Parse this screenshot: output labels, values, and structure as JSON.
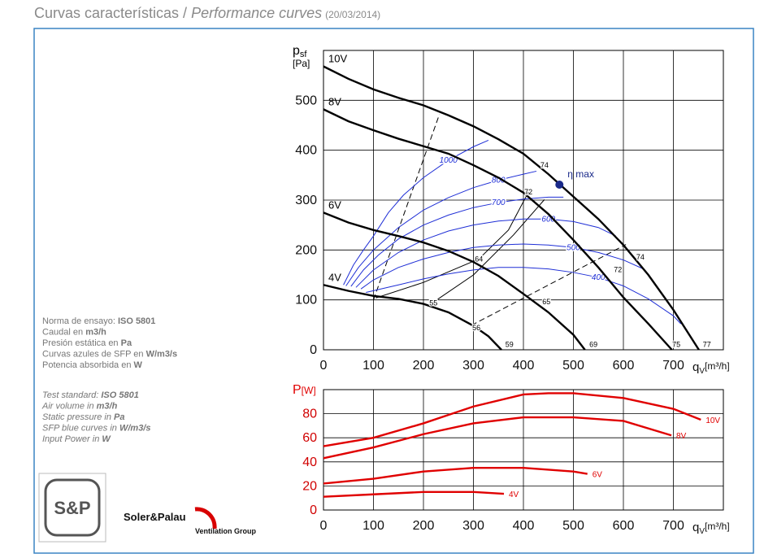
{
  "header": {
    "title_es": "Curvas características / ",
    "title_en": "Performance curves",
    "date": "(20/03/2014)"
  },
  "notes": {
    "es": [
      {
        "text": "Norma de ensayo: ",
        "bold": "ISO 5801"
      },
      {
        "text": "Caudal en ",
        "bold": "m3/h"
      },
      {
        "text": "Presión estática en ",
        "bold": "Pa"
      },
      {
        "text": "Curvas azules de SFP en ",
        "bold": "W/m3/s"
      },
      {
        "text": "Potencia absorbida en ",
        "bold": "W"
      }
    ],
    "en": [
      {
        "text": "Test standard: ",
        "bold": "ISO 5801"
      },
      {
        "text": "Air volume in ",
        "bold": "m3/h"
      },
      {
        "text": "Static pressure in ",
        "bold": "Pa"
      },
      {
        "text": "SFP blue curves in ",
        "bold": "W/m3/s"
      },
      {
        "text": "Input Power in ",
        "bold": "W"
      }
    ]
  },
  "logo": {
    "mark": "S&P",
    "brand": "Soler&Palau",
    "group": "Ventilation Group"
  },
  "chart_data": [
    {
      "type": "line",
      "xlim": [
        0,
        800
      ],
      "ylim": [
        0,
        600
      ],
      "xticks": [
        0,
        100,
        200,
        300,
        400,
        500,
        600,
        700
      ],
      "yticks": [
        0,
        100,
        200,
        300,
        400,
        500
      ],
      "grid": true,
      "ylabel": {
        "symbol": "p",
        "subscript": "sf",
        "unit": "[Pa]",
        "color": "#000000"
      },
      "xlabel": {
        "symbol": "q",
        "subscript": "V",
        "unit": "[m³/h]"
      },
      "series_label_at": "start",
      "series": [
        {
          "name": "10V",
          "color": "#000000",
          "x": [
            0,
            50,
            100,
            150,
            200,
            250,
            300,
            350,
            400,
            450,
            500,
            550,
            600,
            650,
            700,
            751
          ],
          "values": [
            568,
            543,
            522,
            505,
            490,
            470,
            448,
            422,
            393,
            352,
            307,
            262,
            210,
            150,
            80,
            0
          ]
        },
        {
          "name": "8V",
          "color": "#000000",
          "x": [
            0,
            50,
            100,
            150,
            200,
            250,
            300,
            350,
            400,
            450,
            500,
            550,
            600,
            650,
            697
          ],
          "values": [
            482,
            458,
            440,
            423,
            408,
            393,
            370,
            345,
            315,
            272,
            220,
            165,
            105,
            52,
            0
          ]
        },
        {
          "name": "6V",
          "color": "#000000",
          "x": [
            0,
            50,
            100,
            150,
            200,
            250,
            300,
            350,
            400,
            450,
            500,
            523
          ],
          "values": [
            275,
            255,
            240,
            228,
            215,
            198,
            176,
            148,
            112,
            75,
            30,
            0
          ]
        },
        {
          "name": "4V",
          "color": "#000000",
          "x": [
            0,
            50,
            100,
            150,
            200,
            250,
            300,
            330,
            356
          ],
          "values": [
            130,
            118,
            108,
            102,
            92,
            75,
            48,
            27,
            0
          ]
        }
      ],
      "sfp_series": [
        {
          "name": "1000",
          "color": "#1f2fd6",
          "x": [
            40,
            60,
            80,
            100,
            130,
            160,
            200,
            250,
            300,
            330
          ],
          "values": [
            130,
            170,
            200,
            228,
            275,
            310,
            345,
            380,
            407,
            420
          ]
        },
        {
          "name": "800",
          "color": "#1f2fd6",
          "x": [
            45,
            70,
            100,
            150,
            200,
            250,
            300,
            350,
            400,
            426
          ],
          "values": [
            128,
            165,
            200,
            245,
            280,
            305,
            325,
            340,
            352,
            358
          ]
        },
        {
          "name": "700",
          "color": "#1f2fd6",
          "x": [
            55,
            80,
            110,
            150,
            200,
            250,
            300,
            350,
            400,
            450,
            480
          ],
          "values": [
            127,
            160,
            190,
            222,
            250,
            270,
            285,
            295,
            302,
            306,
            306
          ]
        },
        {
          "name": "600",
          "color": "#1f2fd6",
          "x": [
            65,
            100,
            150,
            200,
            250,
            300,
            350,
            400,
            450,
            500,
            550,
            585
          ],
          "values": [
            125,
            160,
            195,
            220,
            238,
            250,
            258,
            262,
            262,
            257,
            245,
            228
          ]
        },
        {
          "name": "500",
          "color": "#1f2fd6",
          "x": [
            75,
            100,
            150,
            200,
            250,
            300,
            350,
            400,
            450,
            500,
            550,
            600,
            640
          ],
          "values": [
            122,
            140,
            165,
            182,
            195,
            205,
            210,
            212,
            210,
            205,
            195,
            180,
            162
          ]
        },
        {
          "name": "400",
          "color": "#1f2fd6",
          "x": [
            85,
            150,
            200,
            250,
            300,
            350,
            400,
            450,
            500,
            550,
            600,
            650,
            700,
            715
          ],
          "values": [
            115,
            130,
            142,
            152,
            160,
            165,
            165,
            162,
            155,
            145,
            128,
            102,
            68,
            52
          ]
        }
      ],
      "system_lines": [
        {
          "style": "dashed",
          "x": [
            100,
            232
          ],
          "values": [
            100,
            472
          ]
        },
        {
          "style": "dashed",
          "x": [
            296,
            605
          ],
          "values": [
            49,
            211
          ]
        },
        {
          "style": "solid",
          "x": [
            105,
            200,
            311,
            370,
            410
          ],
          "values": [
            104,
            135,
            182,
            240,
            316
          ]
        },
        {
          "style": "solid",
          "x": [
            215,
            300,
            380,
            442
          ],
          "values": [
            92,
            150,
            230,
            301
          ]
        }
      ],
      "efficiency_points": [
        {
          "label": "74",
          "x": 442,
          "y": 370
        },
        {
          "label": "72",
          "x": 410,
          "y": 316
        },
        {
          "label": "64",
          "x": 311,
          "y": 182
        },
        {
          "label": "55",
          "x": 220,
          "y": 94
        },
        {
          "label": "56",
          "x": 306,
          "y": 44
        },
        {
          "label": "59",
          "x": 372,
          "y": 11
        },
        {
          "label": "65",
          "x": 446,
          "y": 96
        },
        {
          "label": "69",
          "x": 540,
          "y": 11
        },
        {
          "label": "72",
          "x": 589,
          "y": 161
        },
        {
          "label": "74",
          "x": 634,
          "y": 186
        },
        {
          "label": "75",
          "x": 706,
          "y": 11
        },
        {
          "label": "77",
          "x": 767,
          "y": 11
        }
      ],
      "optimum": {
        "label": "η max",
        "x": 472,
        "y": 331,
        "color": "#1a2a8a"
      }
    },
    {
      "type": "line",
      "xlim": [
        0,
        800
      ],
      "ylim": [
        0,
        100
      ],
      "xticks": [
        0,
        100,
        200,
        300,
        400,
        500,
        600,
        700
      ],
      "yticks": [
        0,
        20,
        40,
        60,
        80
      ],
      "grid": true,
      "ylabel": {
        "symbol": "P",
        "unit": "[W]",
        "color": "#e00000"
      },
      "xlabel": {
        "symbol": "q",
        "subscript": "V",
        "unit": "[m³/h]"
      },
      "series_label_at": "end",
      "series": [
        {
          "name": "10V",
          "color": "#e00000",
          "x": [
            0,
            100,
            200,
            300,
            400,
            450,
            500,
            600,
            700,
            755
          ],
          "values": [
            53,
            60,
            72,
            86,
            96,
            97,
            97,
            93,
            84,
            75
          ]
        },
        {
          "name": "8V",
          "color": "#e00000",
          "x": [
            0,
            100,
            200,
            300,
            400,
            500,
            600,
            696
          ],
          "values": [
            43,
            52,
            63,
            72,
            77,
            77,
            74,
            62
          ]
        },
        {
          "name": "6V",
          "color": "#e00000",
          "x": [
            0,
            100,
            200,
            300,
            400,
            500,
            528
          ],
          "values": [
            22,
            26,
            32,
            35,
            35,
            32,
            30
          ]
        },
        {
          "name": "4V",
          "color": "#e00000",
          "x": [
            0,
            100,
            200,
            300,
            361
          ],
          "values": [
            11,
            13,
            15,
            15,
            13.5
          ]
        }
      ]
    }
  ]
}
